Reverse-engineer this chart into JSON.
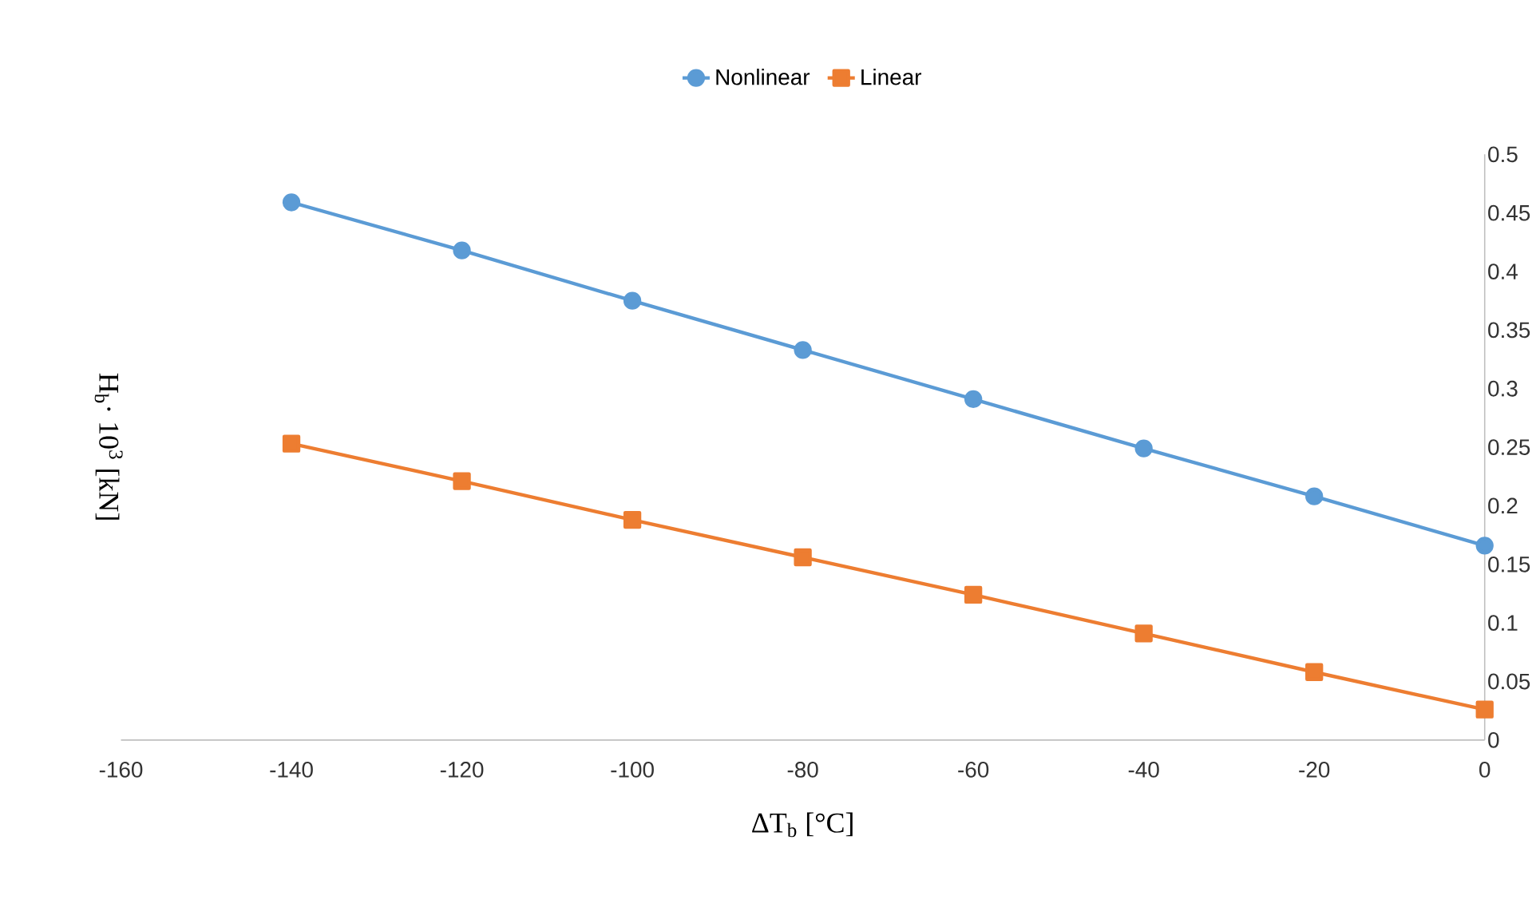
{
  "chart_data": {
    "type": "line",
    "xlabel": "ΔT$_{b}$ [°C]",
    "ylabel": "H$_{b}$· 10$^{3}$ [kN]",
    "x": [
      -140,
      -120,
      -100,
      -80,
      -60,
      -40,
      -20,
      0
    ],
    "series": [
      {
        "name": "Nonlinear",
        "color": "#5b9bd5",
        "marker": "circle",
        "values": [
          0.459,
          0.418,
          0.375,
          0.333,
          0.291,
          0.249,
          0.208,
          0.166
        ]
      },
      {
        "name": "Linear",
        "color": "#ed7d31",
        "marker": "square",
        "values": [
          0.253,
          0.221,
          0.188,
          0.156,
          0.124,
          0.091,
          0.058,
          0.026
        ]
      }
    ],
    "xlim": [
      -160,
      0
    ],
    "xticks": [
      -160,
      -140,
      -120,
      -100,
      -80,
      -60,
      -40,
      -20,
      0
    ],
    "ylim": [
      0,
      0.5
    ],
    "yticks": [
      0,
      0.05,
      0.1,
      0.15,
      0.2,
      0.25,
      0.3,
      0.35,
      0.4,
      0.45,
      0.5
    ],
    "grid": false,
    "legend": "top",
    "line_style": "solid"
  }
}
